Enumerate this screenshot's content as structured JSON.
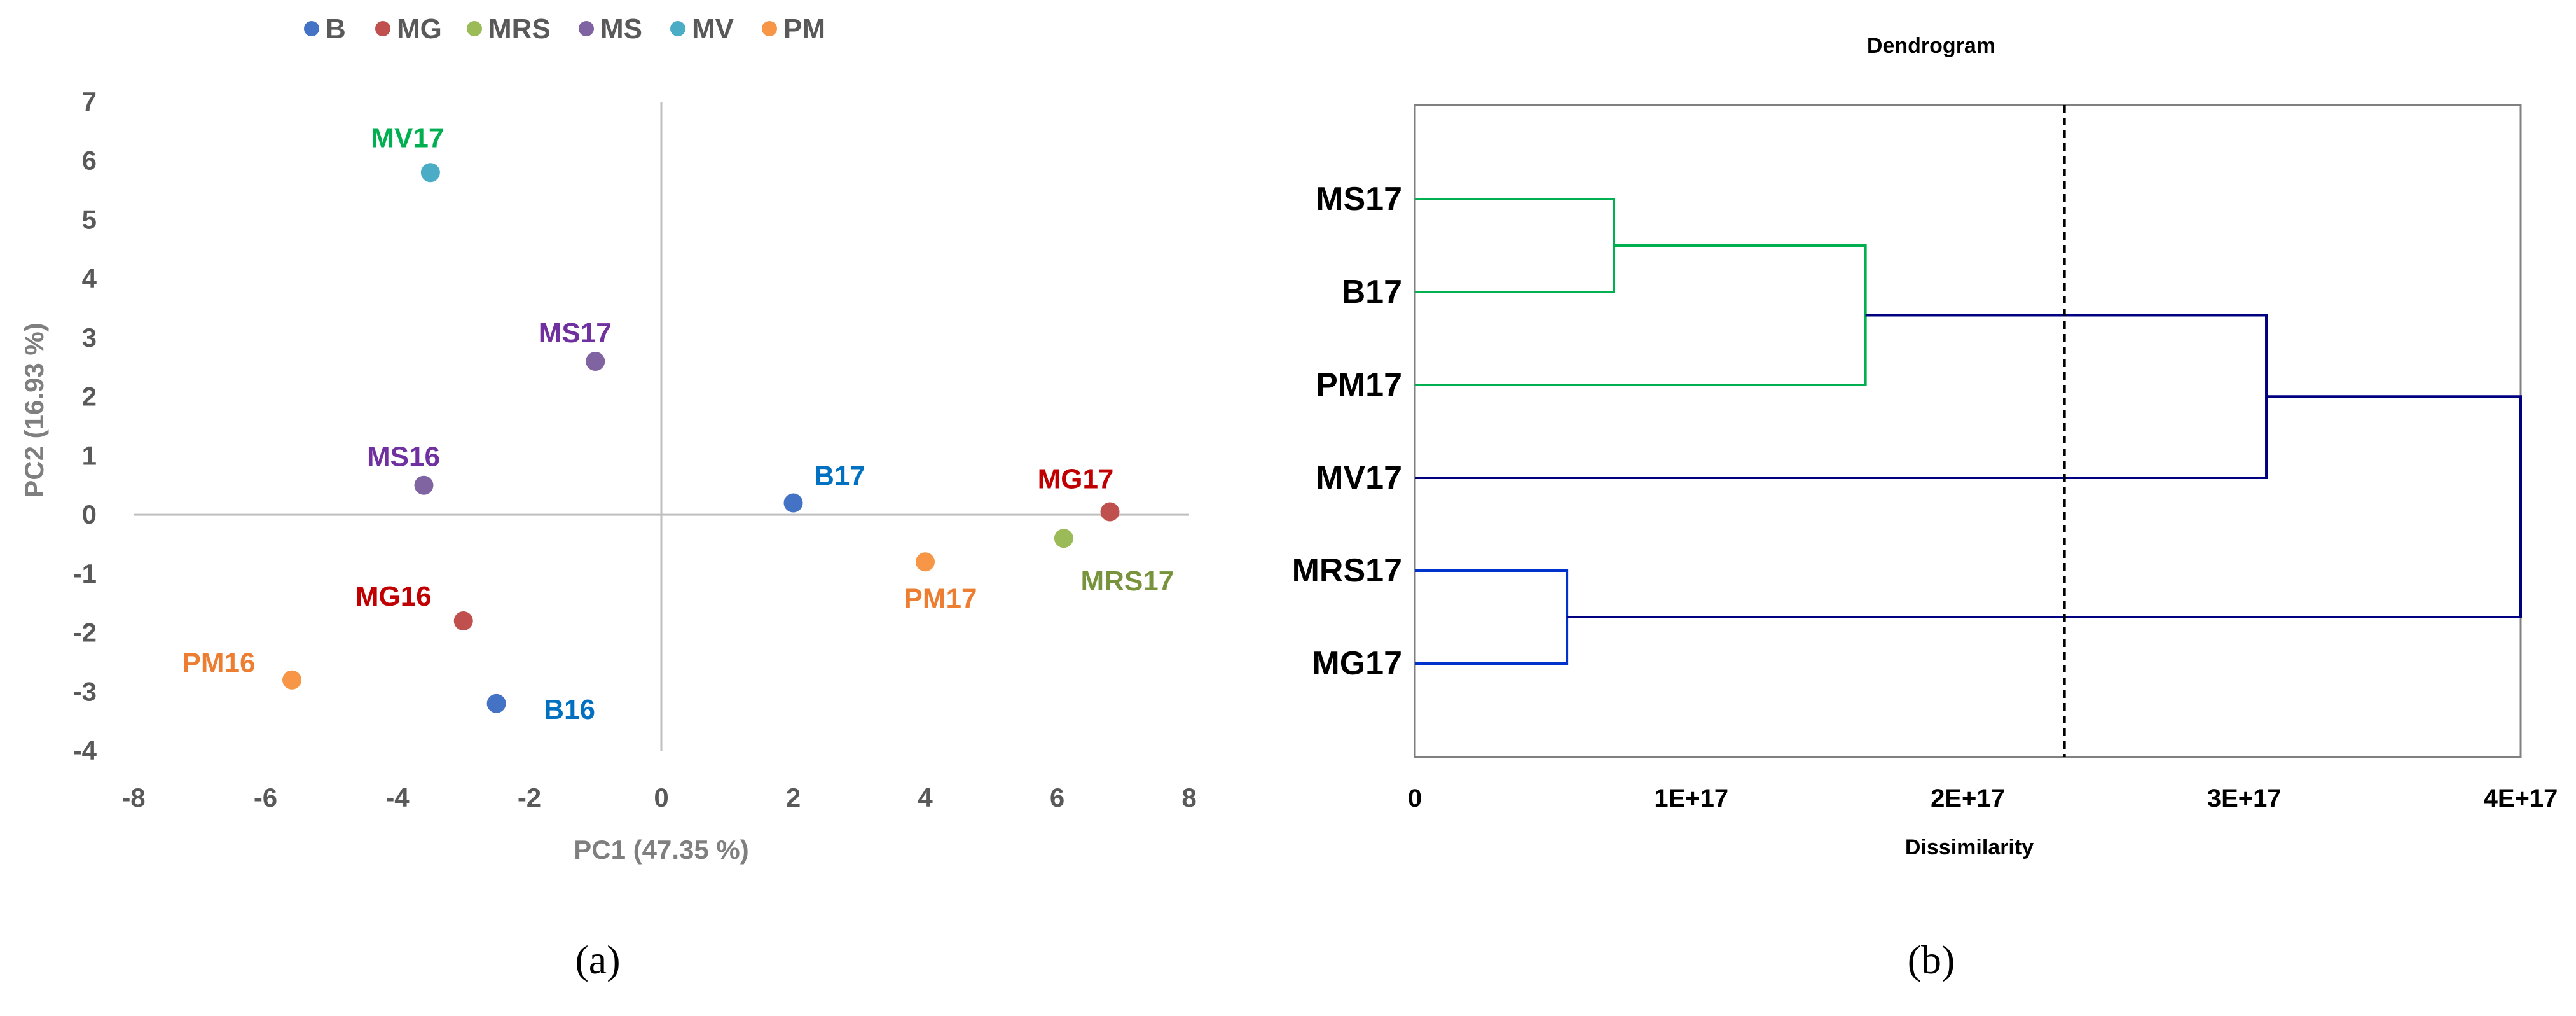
{
  "chart_data": [
    {
      "type": "scatter",
      "panel_label": "(a)",
      "title": "",
      "xlabel": "PC1 (47.35 %)",
      "ylabel": "PC2 (16.93 %)",
      "xlim": [
        -8,
        8
      ],
      "ylim": [
        -4,
        7
      ],
      "xticks": [
        "-8",
        "-6",
        "-4",
        "-2",
        "0",
        "2",
        "4",
        "6",
        "8"
      ],
      "yticks": [
        "-4",
        "-3",
        "-2",
        "-1",
        "0",
        "1",
        "2",
        "3",
        "4",
        "5",
        "6",
        "7"
      ],
      "grid": false,
      "legend_position": "top-left",
      "legend": [
        {
          "name": "B",
          "color": "#4472c4"
        },
        {
          "name": "MG",
          "color": "#c0504d"
        },
        {
          "name": "MRS",
          "color": "#9bbb59"
        },
        {
          "name": "MS",
          "color": "#8064a2"
        },
        {
          "name": "MV",
          "color": "#4bacc6"
        },
        {
          "name": "PM",
          "color": "#f79646"
        }
      ],
      "points": [
        {
          "label": "MV17",
          "group": "MV",
          "x": -3.5,
          "y": 5.8,
          "label_color": "#00b050"
        },
        {
          "label": "MS17",
          "group": "MS",
          "x": -1.0,
          "y": 2.6,
          "label_color": "#7030a0"
        },
        {
          "label": "MS16",
          "group": "MS",
          "x": -3.6,
          "y": 0.5,
          "label_color": "#7030a0"
        },
        {
          "label": "B17",
          "group": "B",
          "x": 2.0,
          "y": 0.2,
          "label_color": "#0070c0"
        },
        {
          "label": "MG17",
          "group": "MG",
          "x": 6.8,
          "y": 0.05,
          "label_color": "#c00000"
        },
        {
          "label": "MRS17",
          "group": "MRS",
          "x": 6.1,
          "y": -0.4,
          "label_color": "#77933c"
        },
        {
          "label": "PM17",
          "group": "PM",
          "x": 4.0,
          "y": -0.8,
          "label_color": "#ed7d31"
        },
        {
          "label": "MG16",
          "group": "MG",
          "x": -3.0,
          "y": -1.8,
          "label_color": "#c00000"
        },
        {
          "label": "PM16",
          "group": "PM",
          "x": -5.6,
          "y": -2.8,
          "label_color": "#ed7d31"
        },
        {
          "label": "B16",
          "group": "B",
          "x": -2.5,
          "y": -3.2,
          "label_color": "#0070c0"
        }
      ]
    },
    {
      "type": "dendrogram",
      "panel_label": "(b)",
      "title": "Dendrogram",
      "xlabel": "Dissimilarity",
      "ylabel": "",
      "xlim": [
        0,
        4e+17
      ],
      "xticks": [
        "0",
        "1E+17",
        "2E+17",
        "3E+17",
        "4E+17"
      ],
      "leaves": [
        "MS17",
        "B17",
        "PM17",
        "MV17",
        "MRS17",
        "MG17"
      ],
      "cutoff": 2.35e+17,
      "merges": [
        {
          "left": "MS17",
          "right": "B17",
          "height": 7.2e+16,
          "color": "#00b050"
        },
        {
          "left": "MS17+B17",
          "right": "PM17",
          "height": 1.63e+17,
          "color": "#00b050"
        },
        {
          "left": "MS17+B17+PM17",
          "right": "MV17",
          "height": 3.08e+17,
          "color": "#000080"
        },
        {
          "left": "MRS17",
          "right": "MG17",
          "height": 5.5e+16,
          "color": "#0033cc"
        },
        {
          "left": "MS17+B17+PM17+MV17",
          "right": "MRS17+MG17",
          "height": 4e+17,
          "color": "#000080"
        }
      ]
    }
  ]
}
